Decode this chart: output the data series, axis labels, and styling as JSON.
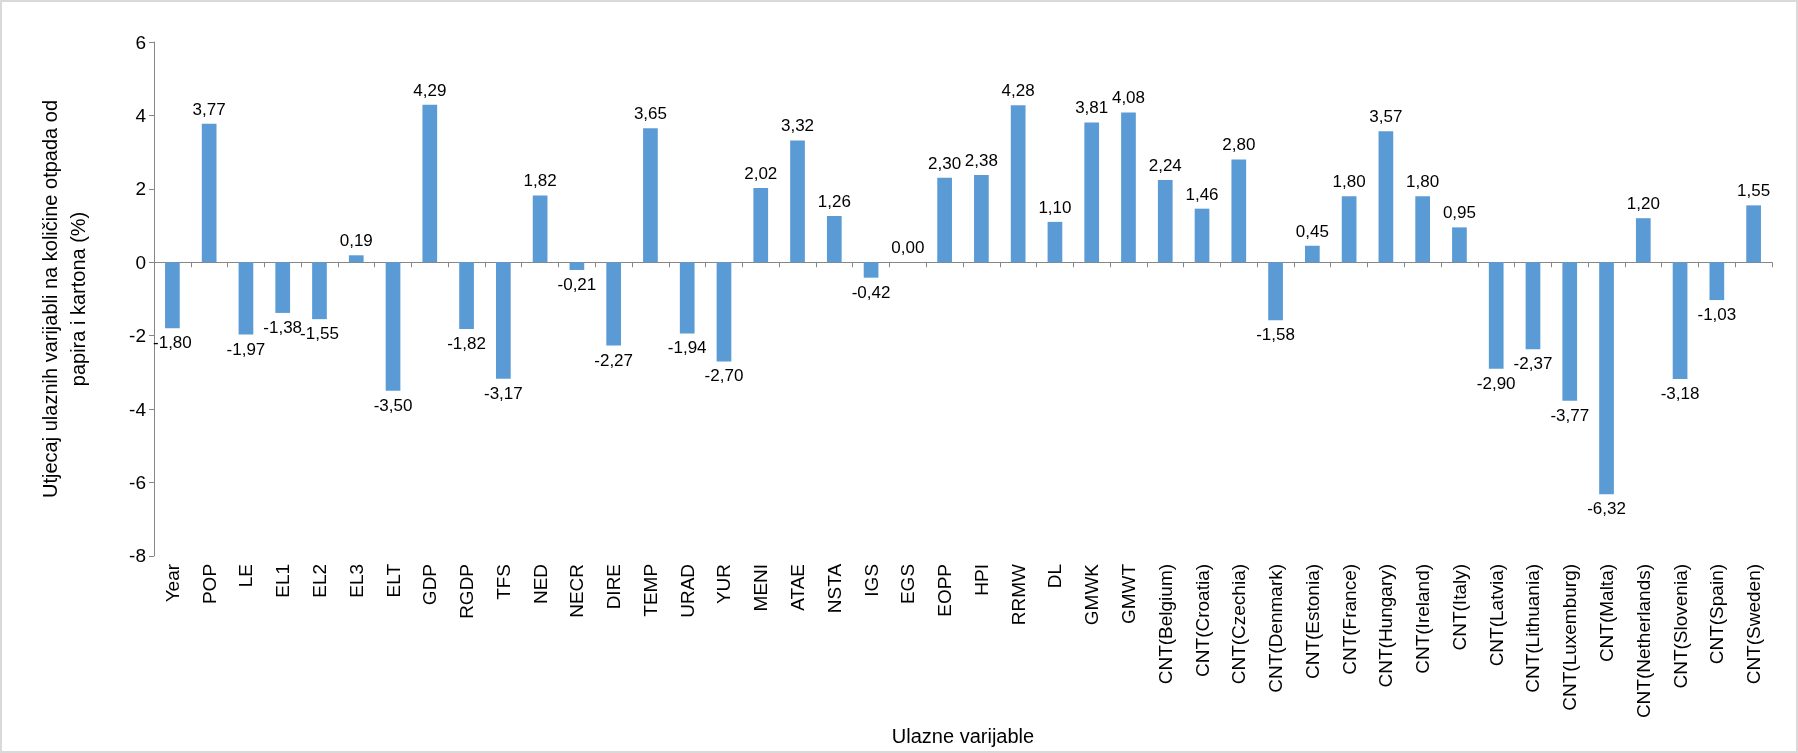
{
  "chart_data": {
    "type": "bar",
    "xlabel": "Ulazne varijable",
    "ylabel": "Utjecaj ulaznih varijabli na količine otpada od papira i kartona (%)",
    "categories": [
      "Year",
      "POP",
      "LE",
      "EL1",
      "EL2",
      "EL3",
      "ELT",
      "GDP",
      "RGDP",
      "TFS",
      "NED",
      "NECR",
      "DIRE",
      "TEMP",
      "URAD",
      "YUR",
      "MENI",
      "ATAE",
      "NSTA",
      "IGS",
      "EGS",
      "EOPP",
      "HPI",
      "RRMW",
      "DL",
      "GMWK",
      "GMWT",
      "CNT(Belgium)",
      "CNT(Croatia)",
      "CNT(Czechia)",
      "CNT(Denmark)",
      "CNT(Estonia)",
      "CNT(France)",
      "CNT(Hungary)",
      "CNT(Ireland)",
      "CNT(Italy)",
      "CNT(Latvia)",
      "CNT(Lithuania)",
      "CNT(Luxemburg)",
      "CNT(Malta)",
      "CNT(Netherlands)",
      "CNT(Slovenia)",
      "CNT(Spain)",
      "CNT(Sweden)"
    ],
    "values": [
      -1.8,
      3.77,
      -1.97,
      -1.38,
      -1.55,
      0.19,
      -3.5,
      4.29,
      -1.82,
      -3.17,
      1.82,
      -0.21,
      -2.27,
      3.65,
      -1.94,
      -2.7,
      2.02,
      3.32,
      1.26,
      -0.42,
      0.0,
      2.3,
      2.38,
      4.28,
      1.1,
      3.81,
      4.08,
      2.24,
      1.46,
      2.8,
      -1.58,
      0.45,
      1.8,
      3.57,
      1.8,
      0.95,
      -2.9,
      -2.37,
      -3.77,
      -6.32,
      1.2,
      -3.18,
      -1.03,
      1.55
    ],
    "value_labels": [
      "-1,80",
      "3,77",
      "-1,97",
      "-1,38",
      "-1,55",
      "0,19",
      "-3,50",
      "4,29",
      "-1,82",
      "-3,17",
      "1,82",
      "-0,21",
      "-2,27",
      "3,65",
      "-1,94",
      "-2,70",
      "2,02",
      "3,32",
      "1,26",
      "-0,42",
      "0,00",
      "2,30",
      "2,38",
      "4,28",
      "1,10",
      "3,81",
      "4,08",
      "2,24",
      "1,46",
      "2,80",
      "-1,58",
      "0,45",
      "1,80",
      "3,57",
      "1,80",
      "0,95",
      "-2,90",
      "-2,37",
      "-3,77",
      "-6,32",
      "1,20",
      "-3,18",
      "-1,03",
      "1,55"
    ],
    "color": "#5b9bd5",
    "ylim": [
      -8,
      6
    ],
    "yticks": [
      -8,
      -6,
      -4,
      -2,
      0,
      2,
      4,
      6
    ]
  }
}
